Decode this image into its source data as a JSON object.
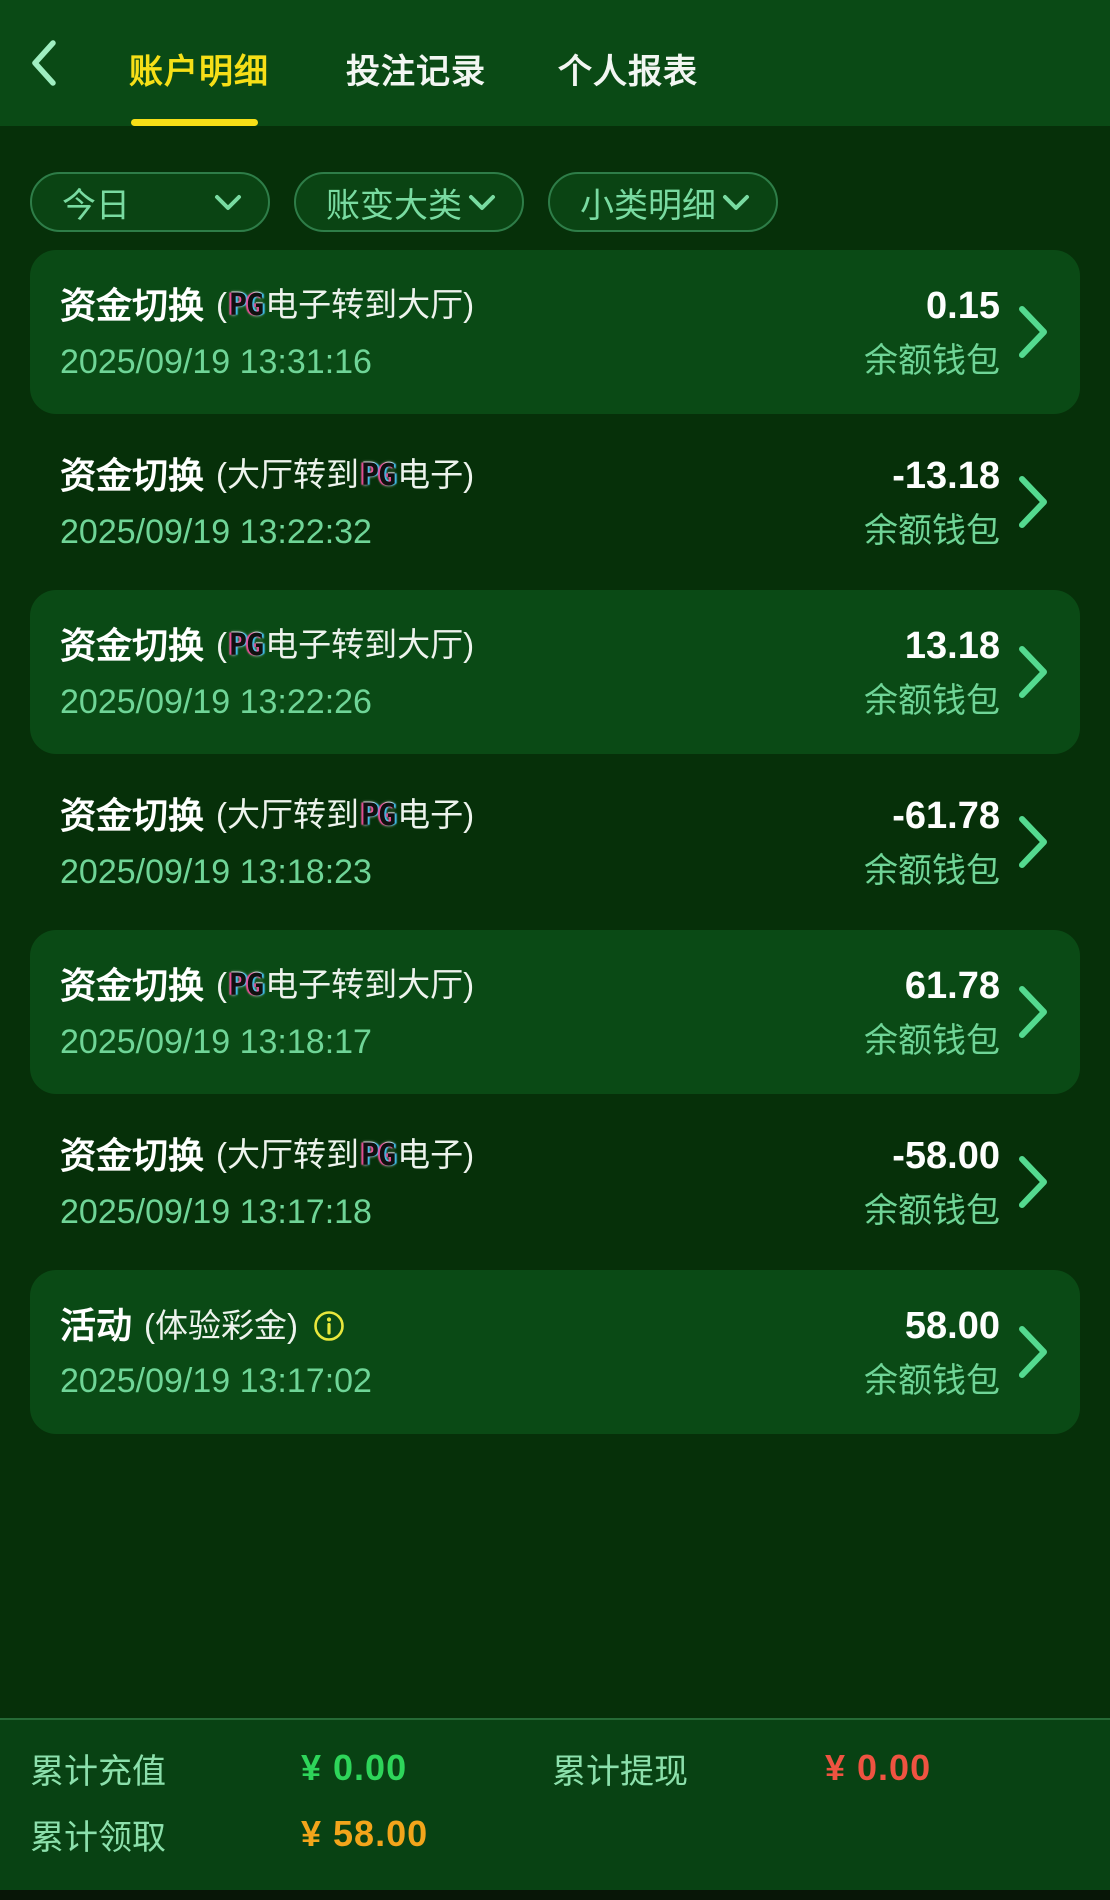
{
  "header": {
    "tabs": [
      {
        "label": "账户明细",
        "active": true
      },
      {
        "label": "投注记录",
        "active": false
      },
      {
        "label": "个人报表",
        "active": false
      }
    ]
  },
  "filters": [
    {
      "label": "今日"
    },
    {
      "label": "账变大类"
    },
    {
      "label": "小类明细"
    }
  ],
  "transactions": [
    {
      "type": "资金切换",
      "note": "(PG电子转到大厅)",
      "info_icon": false,
      "time": "2025/09/19 13:31:16",
      "amount": "0.15",
      "wallet": "余额钱包",
      "card": true
    },
    {
      "type": "资金切换",
      "note": "(大厅转到PG电子)",
      "info_icon": false,
      "time": "2025/09/19 13:22:32",
      "amount": "-13.18",
      "wallet": "余额钱包",
      "card": false
    },
    {
      "type": "资金切换",
      "note": "(PG电子转到大厅)",
      "info_icon": false,
      "time": "2025/09/19 13:22:26",
      "amount": "13.18",
      "wallet": "余额钱包",
      "card": true
    },
    {
      "type": "资金切换",
      "note": "(大厅转到PG电子)",
      "info_icon": false,
      "time": "2025/09/19 13:18:23",
      "amount": "-61.78",
      "wallet": "余额钱包",
      "card": false
    },
    {
      "type": "资金切换",
      "note": "(PG电子转到大厅)",
      "info_icon": false,
      "time": "2025/09/19 13:18:17",
      "amount": "61.78",
      "wallet": "余额钱包",
      "card": true
    },
    {
      "type": "资金切换",
      "note": "(大厅转到PG电子)",
      "info_icon": false,
      "time": "2025/09/19 13:17:18",
      "amount": "-58.00",
      "wallet": "余额钱包",
      "card": false
    },
    {
      "type": "活动",
      "note": "(体验彩金)",
      "info_icon": true,
      "time": "2025/09/19 13:17:02",
      "amount": "58.00",
      "wallet": "余额钱包",
      "card": true
    }
  ],
  "pg_logo_text": "PG",
  "summary": {
    "items": [
      {
        "label": "累计充值",
        "value": "¥ 0.00",
        "color": "#2ed55a"
      },
      {
        "label": "累计提现",
        "value": "¥ 0.00",
        "color": "#ef5341"
      },
      {
        "label": "累计领取",
        "value": "¥ 58.00",
        "color": "#f2a51b"
      }
    ]
  },
  "colors": {
    "page_bg": "#063009",
    "card_bg": "#0a4a15",
    "header_bg": "#0a4a15",
    "accent_yellow": "#f6df17",
    "mint_text": "#6fd597",
    "positive_green": "#2ed55a",
    "negative_red": "#ef5341",
    "claim_orange": "#f2a51b"
  }
}
